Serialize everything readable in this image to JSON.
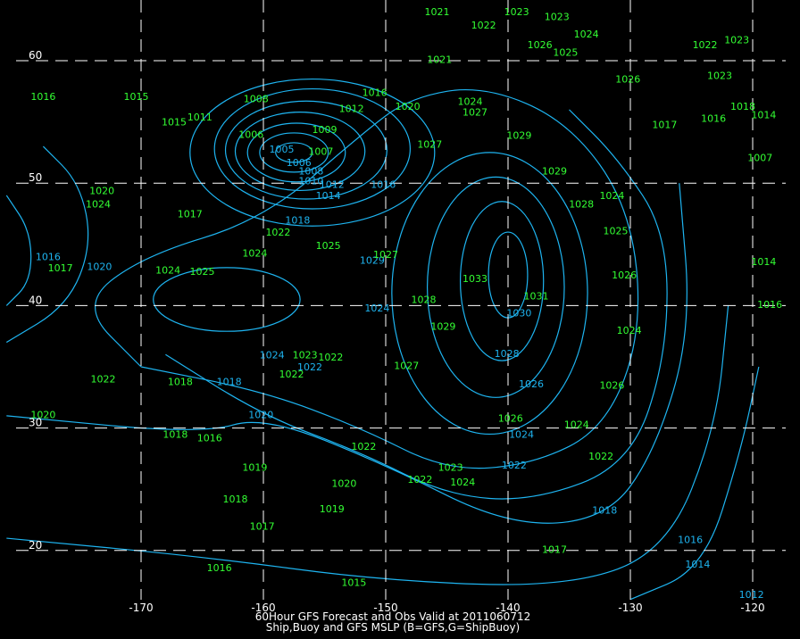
{
  "caption": {
    "line1": "60Hour GFS Forecast and Obs Valid at 2011060712",
    "line2": "Ship,Buoy and GFS MSLP (B=GFS,G=ShipBuoy)"
  },
  "colors": {
    "background": "#000000",
    "gfs_contour": "#1eb4f0",
    "obs_text": "#33ff33",
    "grid": "#ffffff"
  },
  "chart_data": {
    "type": "contour-map",
    "xlabel": "",
    "ylabel": "",
    "lon_range": [
      -181.5,
      -116.5
    ],
    "lat_range": [
      64.9,
      12.8
    ],
    "lon_ticks": [
      -170,
      -160,
      -150,
      -140,
      -130,
      -120
    ],
    "lon_tick_labels": [
      "-170",
      "-160",
      "-150",
      "-140",
      "-130",
      "-120"
    ],
    "lat_ticks": [
      60,
      50,
      40,
      30,
      20
    ],
    "lat_tick_labels": [
      "60",
      "50",
      "40",
      "30",
      "20"
    ],
    "grid": "dashed",
    "contour_ellipses": [
      {
        "value": 1006,
        "center": [
          -157.5,
          52.5
        ],
        "radii": [
          1.5,
          0.8
        ]
      },
      {
        "value": 1008,
        "center": [
          -157.5,
          52.5
        ],
        "radii": [
          2.8,
          1.6
        ]
      },
      {
        "value": 1010,
        "center": [
          -157.3,
          52.5
        ],
        "radii": [
          4.0,
          2.4
        ]
      },
      {
        "value": 1012,
        "center": [
          -157.0,
          52.6
        ],
        "radii": [
          5.3,
          3.2
        ]
      },
      {
        "value": 1014,
        "center": [
          -156.5,
          52.7
        ],
        "radii": [
          6.6,
          4.0
        ]
      },
      {
        "value": 1016,
        "center": [
          -156.0,
          52.8
        ],
        "radii": [
          8.0,
          4.9
        ]
      },
      {
        "value": 1018,
        "center": [
          -156.0,
          52.5
        ],
        "radii": [
          10.0,
          6.0
        ]
      },
      {
        "value": 1030,
        "center": [
          -140.0,
          42.5
        ],
        "radii": [
          1.6,
          3.5
        ]
      },
      {
        "value": 1028,
        "center": [
          -140.5,
          42.0
        ],
        "radii": [
          3.4,
          6.5
        ]
      },
      {
        "value": 1026,
        "center": [
          -141.0,
          41.5
        ],
        "radii": [
          5.6,
          9.0
        ]
      },
      {
        "value": 1024,
        "center": [
          -163.0,
          40.5
        ],
        "radii": [
          6.0,
          2.6
        ]
      },
      {
        "value": 1024,
        "center": [
          -141.5,
          41.0
        ],
        "radii": [
          8.0,
          11.5
        ]
      }
    ],
    "contour_lines": [
      {
        "value": 1022,
        "points": [
          [
            -170,
            35
          ],
          [
            -160,
            33
          ],
          [
            -152,
            30
          ],
          [
            -145,
            26.5
          ],
          [
            -138,
            27
          ],
          [
            -132,
            30
          ],
          [
            -129,
            38
          ],
          [
            -130,
            48
          ],
          [
            -135,
            55
          ],
          [
            -142,
            58
          ],
          [
            -148,
            57
          ],
          [
            -152,
            54
          ],
          [
            -160,
            47
          ],
          [
            -170,
            44
          ],
          [
            -175,
            40
          ],
          [
            -170,
            35
          ]
        ]
      },
      {
        "value": 1020,
        "points": [
          [
            -168,
            36
          ],
          [
            -160,
            31
          ],
          [
            -152,
            28
          ],
          [
            -145,
            24.5
          ],
          [
            -138,
            24
          ],
          [
            -130,
            27
          ],
          [
            -127,
            36
          ],
          [
            -127,
            46
          ],
          [
            -131,
            52
          ],
          [
            -135,
            56
          ]
        ]
      },
      {
        "value": 1018,
        "points": [
          [
            -181,
            31
          ],
          [
            -165,
            29.5
          ],
          [
            -160,
            31
          ],
          [
            -150,
            27
          ],
          [
            -140,
            22
          ],
          [
            -132,
            22.5
          ],
          [
            -128,
            28
          ],
          [
            -125,
            38
          ],
          [
            -126,
            50
          ]
        ]
      },
      {
        "value": 1016,
        "points": [
          [
            -181,
            21
          ],
          [
            -165,
            19.5
          ],
          [
            -150,
            17.5
          ],
          [
            -135,
            17
          ],
          [
            -127,
            20
          ],
          [
            -123,
            30
          ],
          [
            -122,
            40
          ]
        ]
      },
      {
        "value": 1014,
        "points": [
          [
            -130,
            16
          ],
          [
            -124,
            18.5
          ],
          [
            -121,
            28
          ],
          [
            -119.5,
            35
          ]
        ]
      },
      {
        "value": 1020,
        "points": [
          [
            -178,
            53
          ],
          [
            -175,
            50
          ],
          [
            -174,
            45
          ],
          [
            -176,
            40
          ],
          [
            -181,
            37
          ]
        ]
      },
      {
        "value": 1016,
        "points": [
          [
            -181,
            49
          ],
          [
            -179,
            46
          ],
          [
            -179,
            42
          ],
          [
            -181,
            40
          ]
        ]
      }
    ],
    "gfs_labels": [
      {
        "text": "1005",
        "lon": -158.5,
        "lat": 52.8
      },
      {
        "text": "1006",
        "lon": -157.1,
        "lat": 51.7
      },
      {
        "text": "1008",
        "lon": -156.1,
        "lat": 51.0
      },
      {
        "text": "1010",
        "lon": -156.1,
        "lat": 50.2
      },
      {
        "text": "1012",
        "lon": -154.4,
        "lat": 49.9
      },
      {
        "text": "1014",
        "lon": -154.7,
        "lat": 49.0
      },
      {
        "text": "1016",
        "lon": -150.2,
        "lat": 49.9
      },
      {
        "text": "1018",
        "lon": -157.2,
        "lat": 47.0
      },
      {
        "text": "1020",
        "lon": -160.2,
        "lat": 31.1
      },
      {
        "text": "1022",
        "lon": -156.2,
        "lat": 35.0
      },
      {
        "text": "1024",
        "lon": -159.3,
        "lat": 36.0
      },
      {
        "text": "1024",
        "lon": -150.7,
        "lat": 39.8
      },
      {
        "text": "1029",
        "lon": -151.1,
        "lat": 43.7
      },
      {
        "text": "1028",
        "lon": -140.1,
        "lat": 36.1
      },
      {
        "text": "1030",
        "lon": -139.1,
        "lat": 39.4
      },
      {
        "text": "1026",
        "lon": -138.1,
        "lat": 33.6
      },
      {
        "text": "1024",
        "lon": -138.9,
        "lat": 29.5
      },
      {
        "text": "1022",
        "lon": -139.5,
        "lat": 27.0
      },
      {
        "text": "1018",
        "lon": -132.1,
        "lat": 23.3
      },
      {
        "text": "1016",
        "lon": -125.1,
        "lat": 20.9
      },
      {
        "text": "1014",
        "lon": -124.5,
        "lat": 18.9
      },
      {
        "text": "1012",
        "lon": -120.1,
        "lat": 16.4
      },
      {
        "text": "1020",
        "lon": -173.4,
        "lat": 43.2
      },
      {
        "text": "1016",
        "lon": -177.6,
        "lat": 44.0
      },
      {
        "text": "1018",
        "lon": -162.8,
        "lat": 33.8
      }
    ],
    "obs_labels": [
      {
        "text": "1016",
        "lon": -178.0,
        "lat": 57.1
      },
      {
        "text": "1015",
        "lon": -170.4,
        "lat": 57.1
      },
      {
        "text": "1017",
        "lon": -166.0,
        "lat": 47.5
      },
      {
        "text": "1022",
        "lon": -158.8,
        "lat": 46.0
      },
      {
        "text": "1024",
        "lon": -160.7,
        "lat": 44.3
      },
      {
        "text": "1024",
        "lon": -167.8,
        "lat": 42.9
      },
      {
        "text": "1025",
        "lon": -165.0,
        "lat": 42.8
      },
      {
        "text": "1023",
        "lon": -156.6,
        "lat": 36.0
      },
      {
        "text": "1022",
        "lon": -154.5,
        "lat": 35.8
      },
      {
        "text": "1022",
        "lon": -157.7,
        "lat": 34.4
      },
      {
        "text": "1022",
        "lon": -173.1,
        "lat": 34.0
      },
      {
        "text": "1018",
        "lon": -166.8,
        "lat": 33.8
      },
      {
        "text": "1020",
        "lon": -178.0,
        "lat": 31.1
      },
      {
        "text": "1018",
        "lon": -167.2,
        "lat": 29.5
      },
      {
        "text": "1016",
        "lon": -164.4,
        "lat": 29.2
      },
      {
        "text": "1019",
        "lon": -160.7,
        "lat": 26.8
      },
      {
        "text": "1018",
        "lon": -162.3,
        "lat": 24.2
      },
      {
        "text": "1020",
        "lon": -153.4,
        "lat": 25.5
      },
      {
        "text": "1019",
        "lon": -154.4,
        "lat": 23.4
      },
      {
        "text": "1017",
        "lon": -160.1,
        "lat": 22.0
      },
      {
        "text": "1016",
        "lon": -163.6,
        "lat": 18.6
      },
      {
        "text": "1015",
        "lon": -152.6,
        "lat": 17.4
      },
      {
        "text": "1017",
        "lon": -136.2,
        "lat": 20.1
      },
      {
        "text": "1022",
        "lon": -151.8,
        "lat": 28.5
      },
      {
        "text": "1022",
        "lon": -147.2,
        "lat": 25.8
      },
      {
        "text": "1023",
        "lon": -144.7,
        "lat": 26.8
      },
      {
        "text": "1024",
        "lon": -143.7,
        "lat": 25.6
      },
      {
        "text": "1026",
        "lon": -139.8,
        "lat": 30.8
      },
      {
        "text": "1024",
        "lon": -134.4,
        "lat": 30.3
      },
      {
        "text": "1022",
        "lon": -132.4,
        "lat": 27.7
      },
      {
        "text": "1026",
        "lon": -131.5,
        "lat": 33.5
      },
      {
        "text": "1024",
        "lon": -130.1,
        "lat": 38.0
      },
      {
        "text": "1026",
        "lon": -130.5,
        "lat": 42.5
      },
      {
        "text": "1025",
        "lon": -131.2,
        "lat": 46.1
      },
      {
        "text": "1024",
        "lon": -131.5,
        "lat": 49.0
      },
      {
        "text": "1028",
        "lon": -134.0,
        "lat": 48.3
      },
      {
        "text": "1029",
        "lon": -136.2,
        "lat": 51.0
      },
      {
        "text": "1029",
        "lon": -139.1,
        "lat": 53.9
      },
      {
        "text": "1027",
        "lon": -142.7,
        "lat": 55.8
      },
      {
        "text": "1024",
        "lon": -143.1,
        "lat": 56.7
      },
      {
        "text": "1027",
        "lon": -146.4,
        "lat": 53.2
      },
      {
        "text": "1020",
        "lon": -148.2,
        "lat": 56.3
      },
      {
        "text": "1033",
        "lon": -142.7,
        "lat": 42.2
      },
      {
        "text": "1031",
        "lon": -137.7,
        "lat": 40.8
      },
      {
        "text": "1029",
        "lon": -145.3,
        "lat": 38.3
      },
      {
        "text": "1028",
        "lon": -146.9,
        "lat": 40.5
      },
      {
        "text": "1027",
        "lon": -148.3,
        "lat": 35.1
      },
      {
        "text": "1027",
        "lon": -150.0,
        "lat": 44.2
      },
      {
        "text": "1025",
        "lon": -154.7,
        "lat": 44.9
      },
      {
        "text": "1009",
        "lon": -155.0,
        "lat": 54.4
      },
      {
        "text": "1007",
        "lon": -155.3,
        "lat": 52.6
      },
      {
        "text": "1008",
        "lon": -160.6,
        "lat": 56.9
      },
      {
        "text": "1006",
        "lon": -161.0,
        "lat": 54.0
      },
      {
        "text": "1011",
        "lon": -165.2,
        "lat": 55.4
      },
      {
        "text": "1015",
        "lon": -167.3,
        "lat": 55.0
      },
      {
        "text": "1012",
        "lon": -152.8,
        "lat": 56.1
      },
      {
        "text": "1016",
        "lon": -150.9,
        "lat": 57.4
      },
      {
        "text": "1021",
        "lon": -145.8,
        "lat": 64.0
      },
      {
        "text": "1021",
        "lon": -145.6,
        "lat": 60.1
      },
      {
        "text": "1022",
        "lon": -142.0,
        "lat": 62.9
      },
      {
        "text": "1023",
        "lon": -139.3,
        "lat": 64.0
      },
      {
        "text": "1023",
        "lon": -136.0,
        "lat": 63.6
      },
      {
        "text": "1024",
        "lon": -133.6,
        "lat": 62.2
      },
      {
        "text": "1026",
        "lon": -137.4,
        "lat": 61.3
      },
      {
        "text": "1025",
        "lon": -135.3,
        "lat": 60.7
      },
      {
        "text": "1022",
        "lon": -123.9,
        "lat": 61.3
      },
      {
        "text": "1023",
        "lon": -121.3,
        "lat": 61.7
      },
      {
        "text": "1023",
        "lon": -122.7,
        "lat": 58.8
      },
      {
        "text": "1026",
        "lon": -130.2,
        "lat": 58.5
      },
      {
        "text": "1017",
        "lon": -127.2,
        "lat": 54.8
      },
      {
        "text": "1016",
        "lon": -123.2,
        "lat": 55.3
      },
      {
        "text": "1018",
        "lon": -120.8,
        "lat": 56.3
      },
      {
        "text": "1014",
        "lon": -119.1,
        "lat": 55.6
      },
      {
        "text": "1007",
        "lon": -119.4,
        "lat": 52.1
      },
      {
        "text": "1014",
        "lon": -119.1,
        "lat": 43.6
      },
      {
        "text": "1016",
        "lon": -118.6,
        "lat": 40.1
      },
      {
        "text": "1020",
        "lon": -173.2,
        "lat": 49.4
      },
      {
        "text": "1024",
        "lon": -173.5,
        "lat": 48.3
      },
      {
        "text": "1017",
        "lon": -176.6,
        "lat": 43.1
      }
    ]
  }
}
